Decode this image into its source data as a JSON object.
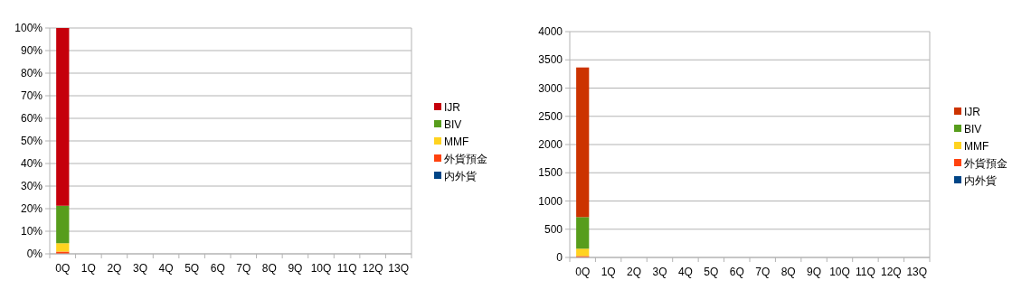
{
  "chart_data": [
    {
      "type": "bar",
      "stacked": true,
      "grid": "y",
      "legend": "right",
      "categories": [
        "0Q",
        "1Q",
        "2Q",
        "3Q",
        "4Q",
        "5Q",
        "6Q",
        "7Q",
        "8Q",
        "9Q",
        "10Q",
        "11Q",
        "12Q",
        "13Q"
      ],
      "ylim": [
        0,
        100
      ],
      "yticks": [
        {
          "value": 0,
          "label": "0%"
        },
        {
          "value": 10,
          "label": "10%"
        },
        {
          "value": 20,
          "label": "20%"
        },
        {
          "value": 30,
          "label": "30%"
        },
        {
          "value": 40,
          "label": "40%"
        },
        {
          "value": 50,
          "label": "50%"
        },
        {
          "value": 60,
          "label": "60%"
        },
        {
          "value": 70,
          "label": "70%"
        },
        {
          "value": 80,
          "label": "80%"
        },
        {
          "value": 90,
          "label": "90%"
        },
        {
          "value": 100,
          "label": "100%"
        }
      ],
      "series": [
        {
          "name": "内外貨",
          "color": "#004586",
          "values": [
            0,
            null,
            null,
            null,
            null,
            null,
            null,
            null,
            null,
            null,
            null,
            null,
            null,
            null
          ]
        },
        {
          "name": "外貨預金",
          "color": "#ff420e",
          "values": [
            1,
            null,
            null,
            null,
            null,
            null,
            null,
            null,
            null,
            null,
            null,
            null,
            null,
            null
          ]
        },
        {
          "name": "MMF",
          "color": "#ffd320",
          "values": [
            3.7,
            null,
            null,
            null,
            null,
            null,
            null,
            null,
            null,
            null,
            null,
            null,
            null,
            null
          ]
        },
        {
          "name": "BIV",
          "color": "#579d1c",
          "values": [
            16.6,
            null,
            null,
            null,
            null,
            null,
            null,
            null,
            null,
            null,
            null,
            null,
            null,
            null
          ]
        },
        {
          "name": "IJR",
          "color": "#c5000b",
          "values": [
            78.7,
            null,
            null,
            null,
            null,
            null,
            null,
            null,
            null,
            null,
            null,
            null,
            null,
            null
          ]
        }
      ]
    },
    {
      "type": "bar",
      "stacked": true,
      "grid": "y",
      "legend": "right",
      "categories": [
        "0Q",
        "1Q",
        "2Q",
        "3Q",
        "4Q",
        "5Q",
        "6Q",
        "7Q",
        "8Q",
        "9Q",
        "10Q",
        "11Q",
        "12Q",
        "13Q"
      ],
      "ylim": [
        0,
        4000
      ],
      "yticks": [
        0,
        500,
        1000,
        1500,
        2000,
        2500,
        3000,
        3500,
        4000
      ],
      "series": [
        {
          "name": "内外貨",
          "color": "#004586",
          "values": [
            0,
            null,
            null,
            null,
            null,
            null,
            null,
            null,
            null,
            null,
            null,
            null,
            null,
            null
          ]
        },
        {
          "name": "外貨預金",
          "color": "#ff420e",
          "values": [
            25,
            null,
            null,
            null,
            null,
            null,
            null,
            null,
            null,
            null,
            null,
            null,
            null,
            null
          ]
        },
        {
          "name": "MMF",
          "color": "#ffd320",
          "values": [
            130,
            null,
            null,
            null,
            null,
            null,
            null,
            null,
            null,
            null,
            null,
            null,
            null,
            null
          ]
        },
        {
          "name": "BIV",
          "color": "#579d1c",
          "values": [
            560,
            null,
            null,
            null,
            null,
            null,
            null,
            null,
            null,
            null,
            null,
            null,
            null,
            null
          ]
        },
        {
          "name": "IJR",
          "color": "#cc3300",
          "values": [
            2650,
            null,
            null,
            null,
            null,
            null,
            null,
            null,
            null,
            null,
            null,
            null,
            null,
            null
          ]
        }
      ]
    }
  ]
}
